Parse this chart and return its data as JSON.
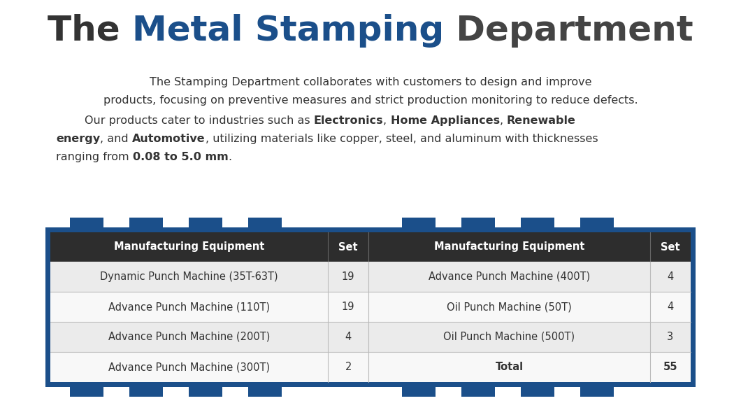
{
  "title_parts": [
    {
      "text": "The ",
      "color": "#333333",
      "bold": true
    },
    {
      "text": "Metal Stamping",
      "color": "#1b4f8a",
      "bold": true
    },
    {
      "text": " Department",
      "color": "#444444",
      "bold": true
    }
  ],
  "paragraph1": "The Stamping Department collaborates with customers to design and improve\nproducts, focusing on preventive measures and strict production monitoring to reduce defects.",
  "paragraph2_lines": [
    [
      {
        "text": "        Our products cater to industries such as ",
        "bold": false
      },
      {
        "text": "Electronics",
        "bold": true
      },
      {
        "text": ", ",
        "bold": false
      },
      {
        "text": "Home Appliances",
        "bold": true
      },
      {
        "text": ", ",
        "bold": false
      },
      {
        "text": "Renewable",
        "bold": true
      }
    ],
    [
      {
        "text": "energy",
        "bold": true
      },
      {
        "text": ", and ",
        "bold": false
      },
      {
        "text": "Automotive",
        "bold": true
      },
      {
        "text": ", utilizing materials like copper, steel, and aluminum with thicknesses",
        "bold": false
      }
    ],
    [
      {
        "text": "ranging from ",
        "bold": false
      },
      {
        "text": "0.08 to 5.0 mm",
        "bold": true
      },
      {
        "text": ".",
        "bold": false
      }
    ]
  ],
  "table": {
    "header_bg": "#2d2d2d",
    "header_text_color": "#ffffff",
    "row_colors": [
      "#ebebeb",
      "#f8f8f8",
      "#ebebeb",
      "#f8f8f8"
    ],
    "border_color": "#1b4f8a",
    "rows": [
      [
        "Dynamic Punch Machine (35T-63T)",
        "19",
        "Advance Punch Machine (400T)",
        "4"
      ],
      [
        "Advance Punch Machine (110T)",
        "19",
        "Oil Punch Machine (50T)",
        "4"
      ],
      [
        "Advance Punch Machine (200T)",
        "4",
        "Oil Punch Machine (500T)",
        "3"
      ],
      [
        "Advance Punch Machine (300T)",
        "2",
        "Total",
        "55"
      ]
    ]
  },
  "bg_color": "#ffffff",
  "text_color": "#333333"
}
